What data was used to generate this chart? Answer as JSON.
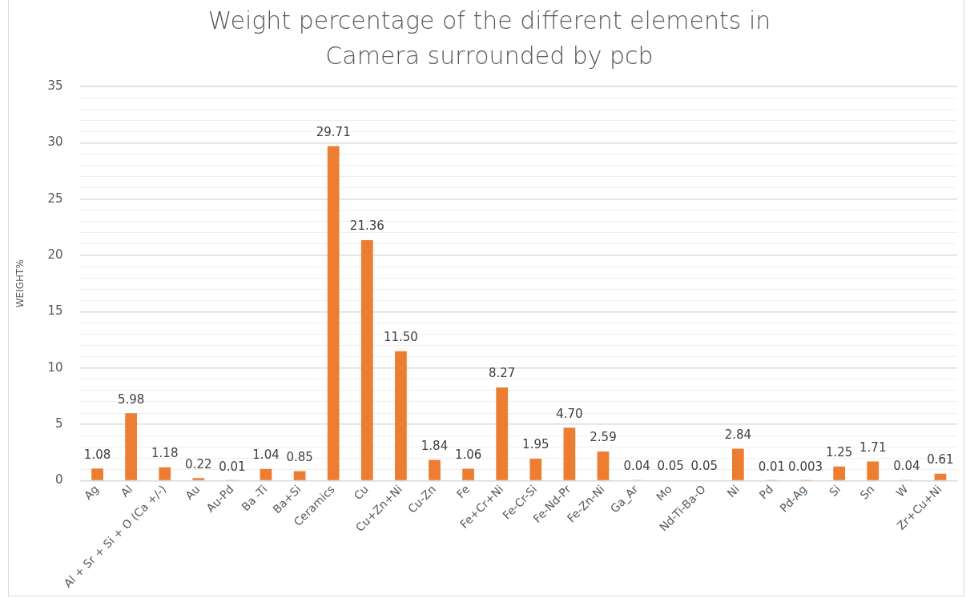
{
  "chart_data": {
    "type": "bar",
    "title": "Weight percentage of the different elements in Camera surrounded by pcb",
    "ylabel": "WEIGHT%",
    "categories": [
      "Ag",
      "Al",
      "Al + Sr + Si + O (Ca +/-)",
      "Au",
      "Au-Pd",
      "Ba -Ti",
      "Ba+Si",
      "Ceramics",
      "Cu",
      "Cu+Zn+Ni",
      "Cu-Zn",
      "Fe",
      "Fe+Cr+Ni",
      "Fe-Cr-Si",
      "Fe-Nd-Pr",
      "Fe-Zn-Ni",
      "Ga_Ar",
      "Mo",
      "Nd-Ti-Ba-O",
      "Ni",
      "Pd",
      "Pd-Ag",
      "Si",
      "Sn",
      "W",
      "Zr+Cu+Ni"
    ],
    "values": [
      1.08,
      5.98,
      1.18,
      0.22,
      0.01,
      1.04,
      0.85,
      29.71,
      21.36,
      11.5,
      1.84,
      1.06,
      8.27,
      1.95,
      4.7,
      2.59,
      0.04,
      0.05,
      0.05,
      2.84,
      0.01,
      0.003,
      1.25,
      1.71,
      0.04,
      0.61
    ],
    "value_labels": [
      "1.08",
      "5.98",
      "1.18",
      "0.22",
      "0.01",
      "1.04",
      "0.85",
      "29.71",
      "21.36",
      "11.50",
      "1.84",
      "1.06",
      "8.27",
      "1.95",
      "4.70",
      "2.59",
      "0.04",
      "0.05",
      "0.05",
      "2.84",
      "0.01",
      "0.003",
      "1.25",
      "1.71",
      "0.04",
      "0.61"
    ],
    "color": "#ed7d31",
    "ylim": [
      0,
      35
    ],
    "yticks": [
      0,
      {
        "value": 1,
        "label": null
      },
      {
        "value": 2,
        "label": null
      },
      {
        "value": 3,
        "label": null
      },
      {
        "value": 4,
        "label": null
      },
      5,
      {
        "value": 6,
        "label": null
      },
      {
        "value": 7,
        "label": null
      },
      {
        "value": 8,
        "label": null
      },
      {
        "value": 9,
        "label": null
      },
      10,
      {
        "value": 11,
        "label": null
      },
      {
        "value": 12,
        "label": null
      },
      {
        "value": 13,
        "label": null
      },
      {
        "value": 14,
        "label": null
      },
      15,
      {
        "value": 16,
        "label": null
      },
      {
        "value": 17,
        "label": null
      },
      {
        "value": 18,
        "label": null
      },
      {
        "value": 19,
        "label": null
      },
      20,
      {
        "value": 21,
        "label": null
      },
      {
        "value": 22,
        "label": null
      },
      {
        "value": 23,
        "label": null
      },
      {
        "value": 24,
        "label": null
      },
      25,
      {
        "value": 26,
        "label": null
      },
      {
        "value": 27,
        "label": null
      },
      {
        "value": 28,
        "label": null
      },
      {
        "value": 29,
        "label": null
      },
      30,
      {
        "value": 31,
        "label": null
      },
      {
        "value": 32,
        "label": null
      },
      {
        "value": 33,
        "label": null
      },
      {
        "value": 34,
        "label": null
      },
      35
    ],
    "grid": "y"
  }
}
